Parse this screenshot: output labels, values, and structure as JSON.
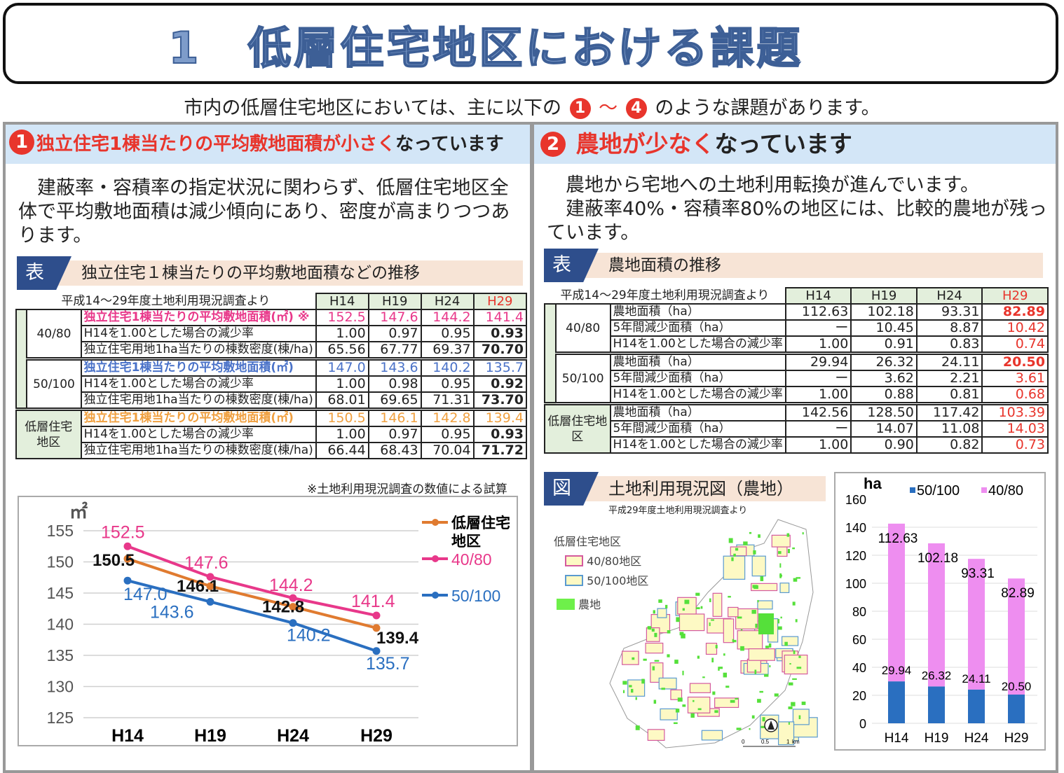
{
  "title": "1　低層住宅地区における課題",
  "intro": {
    "before": "市内の低層住宅地区においては、主に以下の",
    "n1": "1",
    "sep": "～",
    "n4": "4",
    "after": "のような課題があります。"
  },
  "left": {
    "num": "1",
    "heading_red": "独立住宅1棟当たりの平均敷地面積が小さく",
    "heading_black": "なっています",
    "paragraph": "　建蔽率・容積率の指定状況に関わらず、低層住宅地区全体で平均敷地面積は減少傾向にあり、密度が高まりつつあります。",
    "table_tag": "表",
    "table_title": "独立住宅１棟当たりの平均敷地面積などの推移",
    "table_source": "平成14～29年度土地利用現況調査より",
    "columns": [
      "H14",
      "H19",
      "H24",
      "H29"
    ],
    "groups": [
      {
        "label": "40/80",
        "rows": [
          {
            "label": "独立住宅1棟当たりの平均敷地面積(㎡) ※",
            "values": [
              "152.5",
              "147.6",
              "144.2",
              "141.4"
            ]
          },
          {
            "label": "H14を1.00とした場合の減少率",
            "values": [
              "1.00",
              "0.97",
              "0.95",
              "0.93"
            ]
          },
          {
            "label": "独立住宅用地1ha当たりの棟数密度(棟/ha)",
            "values": [
              "65.56",
              "67.77",
              "69.37",
              "70.70"
            ]
          }
        ]
      },
      {
        "label": "50/100",
        "rows": [
          {
            "label": "独立住宅1棟当たりの平均敷地面積(㎡)",
            "values": [
              "147.0",
              "143.6",
              "140.2",
              "135.7"
            ]
          },
          {
            "label": "H14を1.00とした場合の減少率",
            "values": [
              "1.00",
              "0.98",
              "0.95",
              "0.92"
            ]
          },
          {
            "label": "独立住宅用地1ha当たりの棟数密度(棟/ha)",
            "values": [
              "68.01",
              "69.65",
              "71.31",
              "73.70"
            ]
          }
        ]
      },
      {
        "label": "低層住宅地区",
        "rows": [
          {
            "label": "独立住宅1棟当たりの平均敷地面積(㎡)",
            "values": [
              "150.5",
              "146.1",
              "142.8",
              "139.4"
            ]
          },
          {
            "label": "H14を1.00とした場合の減少率",
            "values": [
              "1.00",
              "0.97",
              "0.95",
              "0.93"
            ]
          },
          {
            "label": "独立住宅用地1ha当たりの棟数密度(棟/ha)",
            "values": [
              "66.44",
              "68.43",
              "70.04",
              "71.72"
            ]
          }
        ]
      }
    ],
    "table_note": "※土地利用現況調査の数値による試算"
  },
  "right": {
    "num": "2",
    "heading_red": "農地が少なく",
    "heading_black": "なっています",
    "paragraph": "　農地から宅地への土地利用転換が進んでいます。\n　建蔽率40%・容積率80%の地区には、比較的農地が残っています。",
    "table_tag": "表",
    "table_title": "農地面積の推移",
    "table_source": "平成14～29年度土地利用現況調査より",
    "columns": [
      "H14",
      "H19",
      "H24",
      "H29"
    ],
    "groups": [
      {
        "label": "40/80",
        "rows": [
          {
            "label": "農地面積（ha）",
            "values": [
              "112.63",
              "102.18",
              "93.31",
              "82.89"
            ]
          },
          {
            "label": "5年間減少面積（ha）",
            "values": [
              "ー",
              "10.45",
              "8.87",
              "10.42"
            ]
          },
          {
            "label": "H14を1.00とした場合の減少率",
            "values": [
              "1.00",
              "0.91",
              "0.83",
              "0.74"
            ]
          }
        ]
      },
      {
        "label": "50/100",
        "rows": [
          {
            "label": "農地面積（ha）",
            "values": [
              "29.94",
              "26.32",
              "24.11",
              "20.50"
            ]
          },
          {
            "label": "5年間減少面積（ha）",
            "values": [
              "ー",
              "3.62",
              "2.21",
              "3.61"
            ]
          },
          {
            "label": "H14を1.00とした場合の減少率",
            "values": [
              "1.00",
              "0.88",
              "0.81",
              "0.68"
            ]
          }
        ]
      },
      {
        "label": "低層住宅地区",
        "rows": [
          {
            "label": "農地面積（ha）",
            "values": [
              "142.56",
              "128.50",
              "117.42",
              "103.39"
            ]
          },
          {
            "label": "5年間減少面積（ha）",
            "values": [
              "ー",
              "14.07",
              "11.08",
              "14.03"
            ]
          },
          {
            "label": "H14を1.00とした場合の減少率",
            "values": [
              "1.00",
              "0.90",
              "0.82",
              "0.73"
            ]
          }
        ]
      }
    ],
    "map": {
      "tag": "図",
      "title": "土地利用現況図（農地）",
      "source": "平成29年度土地利用現況調査より",
      "legend_title": "低層住宅地区",
      "legend": [
        "40/80地区",
        "50/100地区",
        "農地"
      ],
      "scale": [
        "0",
        "0.5",
        "1",
        "km"
      ]
    }
  },
  "colors": {
    "pink": "#e8388a",
    "blue": "#2a6fc0",
    "orange": "#e07b30",
    "violet": "#ee8ef0",
    "red": "#e8352c"
  },
  "chart_data": [
    {
      "type": "line",
      "ylabel": "㎡",
      "categories": [
        "H14",
        "H19",
        "H24",
        "H29"
      ],
      "ylim": [
        125,
        155
      ],
      "yticks": [
        155,
        150,
        145,
        140,
        135,
        130,
        125
      ],
      "grid": true,
      "legend": "right",
      "series": [
        {
          "name": "低層住宅地区",
          "values": [
            150.5,
            146.1,
            142.8,
            139.4
          ],
          "color": "#e07b30"
        },
        {
          "name": "40/80",
          "values": [
            152.5,
            147.6,
            144.2,
            141.4
          ],
          "color": "#e8388a"
        },
        {
          "name": "50/100",
          "values": [
            147.0,
            143.6,
            140.2,
            135.7
          ],
          "color": "#2a6fc0"
        }
      ]
    },
    {
      "type": "bar",
      "stacked": true,
      "ylabel": "ha",
      "categories": [
        "H14",
        "H19",
        "H24",
        "H29"
      ],
      "ylim": [
        0,
        160
      ],
      "yticks": [
        160,
        140,
        120,
        100,
        80,
        60,
        40,
        20,
        0
      ],
      "legend": "top",
      "series": [
        {
          "name": "50/100",
          "values": [
            29.94,
            26.32,
            24.11,
            20.5
          ],
          "color": "#2a6fc0"
        },
        {
          "name": "40/80",
          "values": [
            112.63,
            102.18,
            93.31,
            82.89
          ],
          "color": "#ee8ef0"
        }
      ]
    }
  ]
}
